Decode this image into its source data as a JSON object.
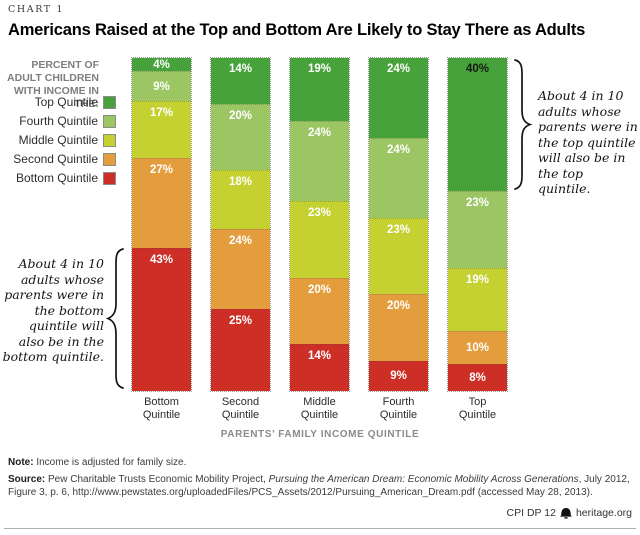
{
  "header": {
    "kicker": "CHART 1",
    "title": "Americans Raised at the Top and Bottom Are Likely to Stay There as Adults"
  },
  "legend": {
    "heading": "PERCENT OF ADULT CHILDREN WITH INCOME IN THE:",
    "items": [
      {
        "label": "Top Quintile",
        "color": "#48a23c"
      },
      {
        "label": "Fourth Quintile",
        "color": "#9cc663"
      },
      {
        "label": "Middle Quintile",
        "color": "#c4d130"
      },
      {
        "label": "Second Quintile",
        "color": "#e49d3d"
      },
      {
        "label": "Bottom Quintile",
        "color": "#cd2f27"
      }
    ]
  },
  "chart_data": {
    "type": "bar",
    "stacked": true,
    "categories": [
      "Bottom Quintile",
      "Second Quintile",
      "Middle Quintile",
      "Fourth Quintile",
      "Top Quintile"
    ],
    "series": [
      {
        "name": "Top Quintile",
        "color": "#48a23c",
        "values": [
          4,
          14,
          19,
          24,
          40
        ]
      },
      {
        "name": "Fourth Quintile",
        "color": "#9cc663",
        "values": [
          9,
          20,
          24,
          24,
          23
        ]
      },
      {
        "name": "Middle Quintile",
        "color": "#c4d130",
        "values": [
          17,
          18,
          23,
          23,
          19
        ]
      },
      {
        "name": "Second Quintile",
        "color": "#e49d3d",
        "values": [
          27,
          24,
          20,
          20,
          10
        ]
      },
      {
        "name": "Bottom Quintile",
        "color": "#cd2f27",
        "values": [
          43,
          25,
          14,
          9,
          8
        ]
      }
    ],
    "value_suffix": "%",
    "xlabel": "PARENTS’ FAMILY INCOME QUINTILE",
    "ylim": [
      0,
      100
    ],
    "grid": false,
    "legend_position": "left",
    "emphasis_dark_label": {
      "category_index": 4,
      "series_index": 0
    }
  },
  "annotations": {
    "right": "About 4 in 10 adults whose parents were in the top quintile will also be in the top quintile.",
    "left": "About 4 in 10 adults whose parents were in the bottom quintile will also be in the bottom quintile."
  },
  "footer": {
    "note_label": "Note:",
    "note_text": " Income is adjusted for family size.",
    "source_label": "Source:",
    "source_prefix": " Pew Charitable Trusts Economic Mobility Project, ",
    "source_italic": "Pursuing the American Dream: Economic Mobility Across Generations",
    "source_suffix": ", July 2012,",
    "source_line2": "Figure 3, p. 6, http://www.pewstates.org/uploadedFiles/PCS_Assets/2012/Pursuing_American_Dream.pdf (accessed May 28, 2013).",
    "credit_code": "CPI DP 12",
    "credit_site": "heritage.org"
  }
}
